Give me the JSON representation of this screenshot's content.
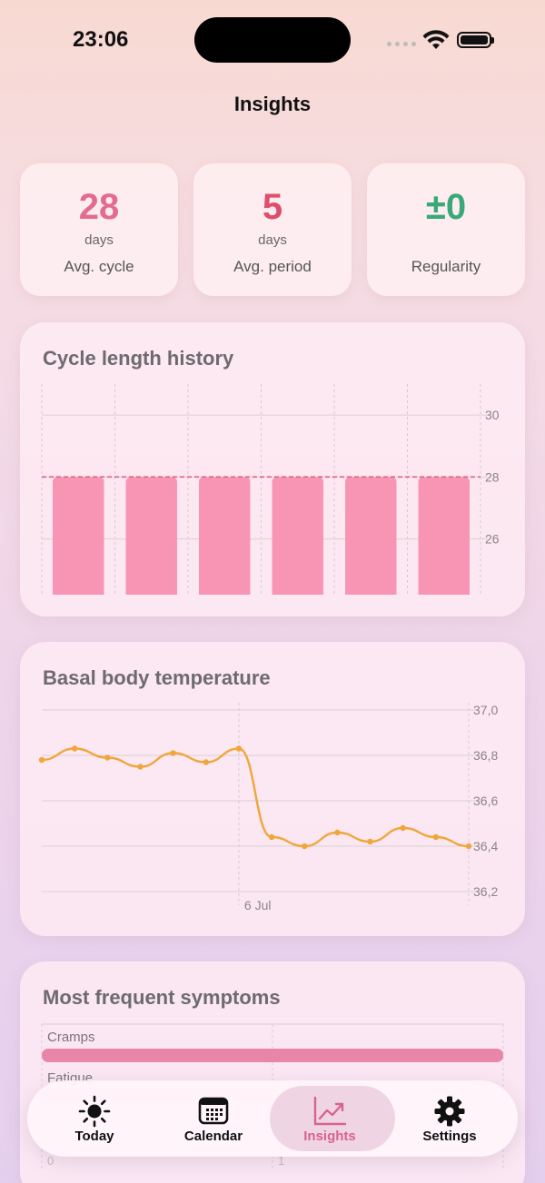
{
  "status": {
    "time": "23:06"
  },
  "header": {
    "title": "Insights"
  },
  "stats": [
    {
      "value": "28",
      "unit": "days",
      "label": "Avg. cycle",
      "color": "#e46b90"
    },
    {
      "value": "5",
      "unit": "days",
      "label": "Avg. period",
      "color": "#dd4f6d"
    },
    {
      "value": "±0",
      "unit": "",
      "label": "Regularity",
      "color": "#3aa97a"
    }
  ],
  "cycle_history": {
    "title": "Cycle length history",
    "chart_data": {
      "type": "bar",
      "values": [
        28,
        28,
        28,
        28,
        28,
        28
      ],
      "average": 28,
      "y_ticks": [
        "30",
        "28",
        "26"
      ],
      "y_tick_values": [
        30,
        28,
        26
      ],
      "ylim": [
        24.2,
        31
      ],
      "bar_color": "#f895b5",
      "avg_line_color": "#e0607f"
    }
  },
  "bbt": {
    "title": "Basal body temperature",
    "chart_data": {
      "type": "line",
      "values": [
        36.78,
        36.83,
        36.79,
        36.75,
        36.81,
        36.77,
        36.83,
        36.44,
        36.4,
        36.46,
        36.42,
        36.48,
        36.44,
        36.4
      ],
      "y_ticks": [
        "37,0",
        "36,8",
        "36,6",
        "36,4",
        "36,2"
      ],
      "y_tick_values": [
        37.0,
        36.8,
        36.6,
        36.4,
        36.2
      ],
      "ylim": [
        36.2,
        37.0
      ],
      "x_marker_label": "6 Jul",
      "x_marker_index": 6,
      "line_color": "#f0a63a"
    }
  },
  "symptoms": {
    "title": "Most frequent symptoms",
    "items": [
      {
        "label": "Cramps"
      },
      {
        "label": "Fatigue"
      }
    ],
    "x_ticks": [
      "0",
      "1"
    ]
  },
  "tabs": [
    {
      "label": "Today",
      "icon": "sun-icon"
    },
    {
      "label": "Calendar",
      "icon": "calendar-icon"
    },
    {
      "label": "Insights",
      "icon": "chart-trend-icon",
      "active": true
    },
    {
      "label": "Settings",
      "icon": "gear-icon"
    }
  ]
}
